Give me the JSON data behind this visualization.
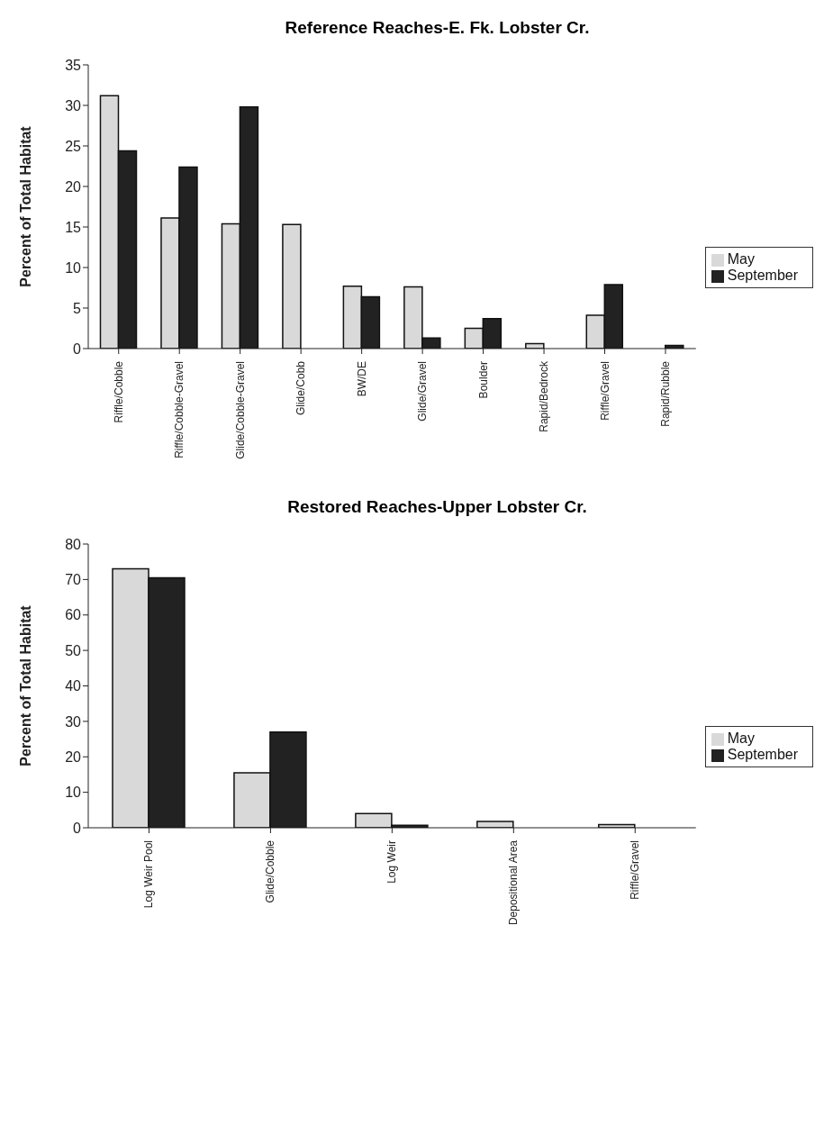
{
  "chart_data": [
    {
      "type": "bar",
      "title": "Reference Reaches-E. Fk. Lobster Cr.",
      "ylabel": "Percent of Total Habitat",
      "categories": [
        "Riffle/Cobble",
        "Riffle/Cobble-Gravel",
        "Glide/Cobble-Gravel",
        "Glide/Cobb",
        "BW/DE",
        "Glide/Gravel",
        "Boulder",
        "Rapid/Bedrock",
        "Riffle/Gravel",
        "Rapid/Rubble"
      ],
      "series": [
        {
          "name": "May",
          "color": "#d9d9d9",
          "values": [
            31.2,
            16.1,
            15.4,
            15.3,
            7.7,
            7.6,
            2.5,
            0.6,
            4.1,
            null
          ]
        },
        {
          "name": "September",
          "color": "#222222",
          "values": [
            24.4,
            22.4,
            29.8,
            null,
            6.4,
            1.3,
            3.7,
            null,
            7.9,
            0.4
          ]
        }
      ],
      "ylim": [
        0,
        35
      ],
      "yticks": [
        0,
        5,
        10,
        15,
        20,
        25,
        30,
        35
      ],
      "grid": false,
      "legend": "right"
    },
    {
      "type": "bar",
      "title": "Restored Reaches-Upper Lobster Cr.",
      "ylabel": "Percent of Total Habitat",
      "categories": [
        "Log Weir Pool",
        "Glide/Cobble",
        "Log Weir",
        "Depositional Area",
        "Riffle/Gravel"
      ],
      "series": [
        {
          "name": "May",
          "color": "#d9d9d9",
          "values": [
            73,
            15.5,
            4,
            1.8,
            0.9
          ]
        },
        {
          "name": "September",
          "color": "#222222",
          "values": [
            70.5,
            27,
            0.7,
            null,
            null
          ]
        }
      ],
      "ylim": [
        0,
        80
      ],
      "yticks": [
        0,
        10,
        20,
        30,
        40,
        50,
        60,
        70,
        80
      ],
      "grid": false,
      "legend": "right"
    }
  ]
}
